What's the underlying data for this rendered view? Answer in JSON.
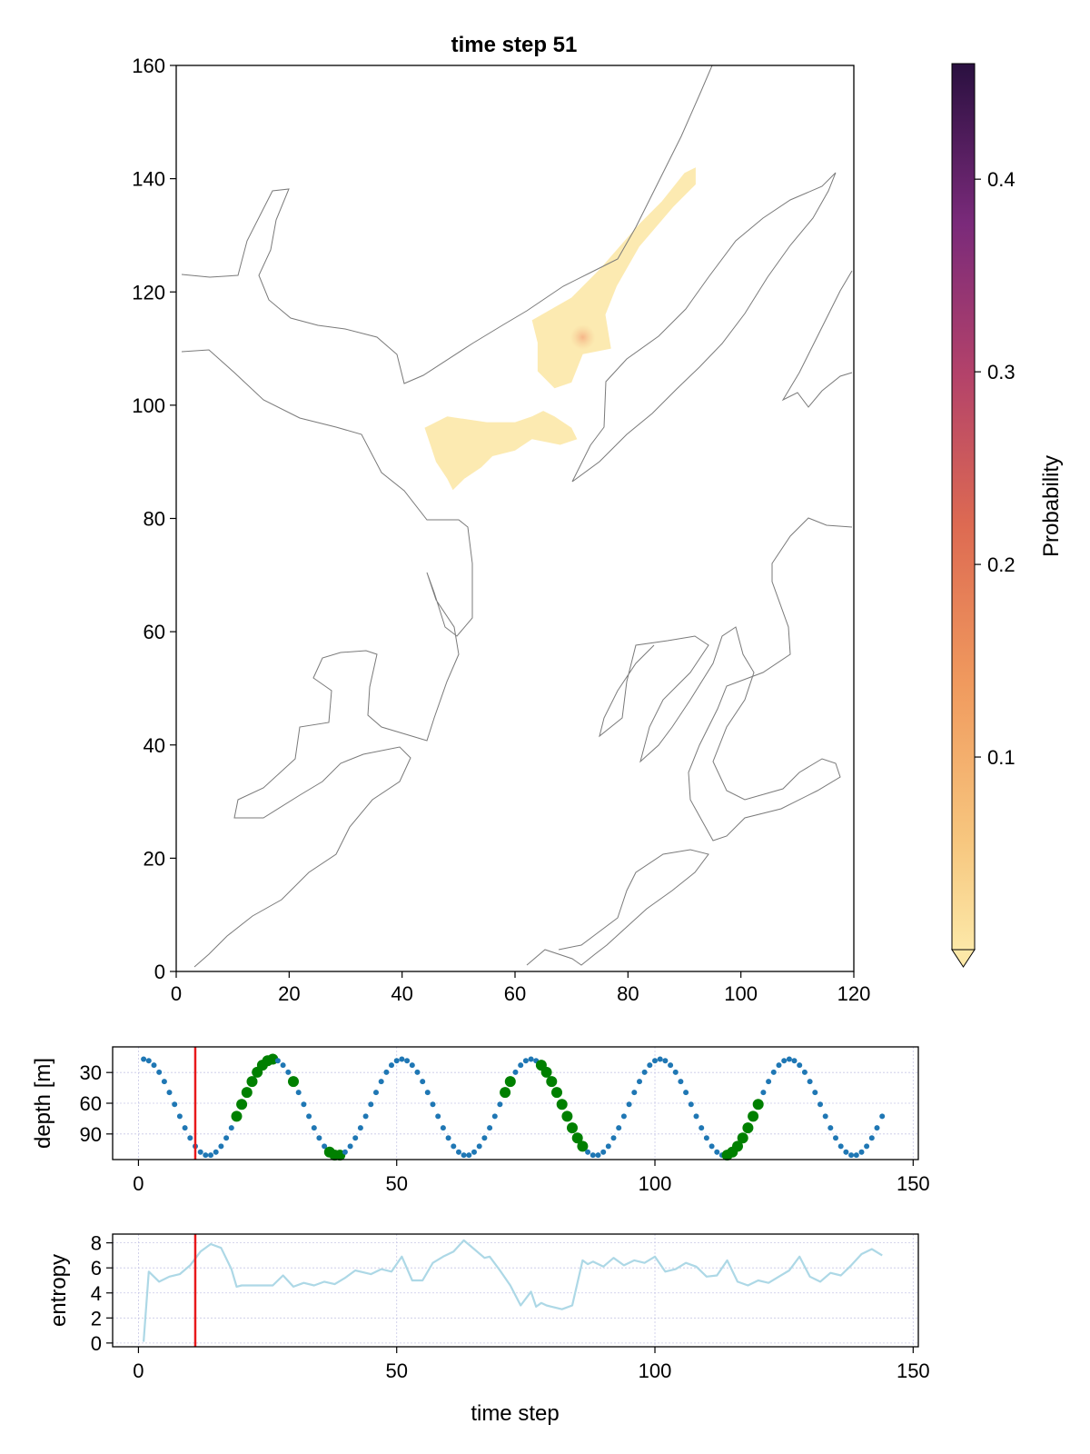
{
  "chart_data": [
    {
      "type": "heatmap",
      "title": "time step 51",
      "xlim": [
        0,
        120
      ],
      "ylim": [
        0,
        160
      ],
      "x_ticks": [
        "0",
        "20",
        "40",
        "60",
        "80",
        "100",
        "120"
      ],
      "y_ticks": [
        "0",
        "20",
        "40",
        "60",
        "80",
        "100",
        "120",
        "140",
        "160"
      ],
      "colorbar": {
        "label": "Probability",
        "ticks": [
          "0.1",
          "0.2",
          "0.3",
          "0.4"
        ],
        "range": [
          0,
          0.46
        ],
        "colormap": "inferno_reversed",
        "low_color": "#fce8a8",
        "high_color": "#2a1040"
      },
      "probability_regions": [
        {
          "name": "northern band",
          "probability": 0.02,
          "polygon": [
            [
              63,
              115
            ],
            [
              70,
              119
            ],
            [
              75,
              124
            ],
            [
              82,
              132
            ],
            [
              86,
              136
            ],
            [
              90,
              141
            ],
            [
              92,
              142
            ],
            [
              92,
              139
            ],
            [
              88,
              135
            ],
            [
              82,
              128
            ],
            [
              78,
              121
            ],
            [
              76,
              116
            ],
            [
              77,
              110
            ],
            [
              72,
              109
            ],
            [
              70,
              104
            ],
            [
              67,
              103
            ],
            [
              64,
              106
            ],
            [
              64,
              111
            ]
          ]
        },
        {
          "name": "southern blob",
          "probability": 0.02,
          "polygon": [
            [
              44,
              96
            ],
            [
              48,
              98
            ],
            [
              55,
              97
            ],
            [
              60,
              97
            ],
            [
              63,
              98
            ],
            [
              65,
              99
            ],
            [
              67,
              98
            ],
            [
              70,
              96
            ],
            [
              71,
              94
            ],
            [
              68,
              93
            ],
            [
              63,
              94
            ],
            [
              60,
              92
            ],
            [
              56,
              91
            ],
            [
              54,
              89
            ],
            [
              51,
              87
            ],
            [
              49,
              85
            ],
            [
              48,
              87
            ],
            [
              46,
              90
            ],
            [
              45,
              93
            ]
          ]
        },
        {
          "name": "hotspot",
          "probability": 0.06,
          "center": [
            72,
            112
          ]
        }
      ]
    },
    {
      "type": "scatter",
      "ylabel": "depth [m]",
      "xlim": [
        -5,
        151
      ],
      "ylim": [
        115,
        5
      ],
      "x_ticks": [
        "0",
        "50",
        "100",
        "150"
      ],
      "y_ticks": [
        "30",
        "60",
        "90"
      ],
      "current_time_step": 11,
      "series_color": "#1f77b4",
      "highlight_color": "#008000",
      "depth_model": {
        "period": 25,
        "mean": 64,
        "amplitude": 47,
        "offset": 1
      },
      "x_range": [
        1,
        144
      ],
      "highlighted_time_steps": [
        19,
        20,
        21,
        22,
        23,
        24,
        25,
        26,
        30,
        37,
        38,
        39,
        71,
        72,
        78,
        79,
        80,
        81,
        82,
        83,
        84,
        85,
        86,
        114,
        115,
        116,
        117,
        118,
        119,
        120
      ]
    },
    {
      "type": "line",
      "xlabel": "time step",
      "ylabel": "entropy",
      "xlim": [
        -5,
        151
      ],
      "ylim": [
        -0.3,
        8.7
      ],
      "x_ticks": [
        "0",
        "50",
        "100",
        "150"
      ],
      "y_ticks": [
        "0",
        "2",
        "4",
        "6",
        "8"
      ],
      "current_time_step": 11,
      "series_color": "#add8e6",
      "x": [
        1,
        2,
        4,
        6,
        8,
        10,
        12,
        14,
        16,
        18,
        19,
        20,
        22,
        26,
        28,
        30,
        32,
        34,
        36,
        38,
        40,
        42,
        45,
        47,
        49,
        51,
        53,
        55,
        57,
        59,
        61,
        63,
        65,
        67,
        68,
        70,
        72,
        74,
        76,
        77,
        78,
        79,
        80,
        82,
        84,
        86,
        87,
        88,
        90,
        92,
        94,
        96,
        98,
        100,
        102,
        104,
        106,
        108,
        110,
        112,
        114,
        116,
        118,
        120,
        122,
        124,
        126,
        128,
        130,
        132,
        134,
        136,
        138,
        140,
        142,
        144
      ],
      "values": [
        0.1,
        5.7,
        4.9,
        5.3,
        5.5,
        6.2,
        7.3,
        7.9,
        7.6,
        5.9,
        4.5,
        4.6,
        4.6,
        4.6,
        5.4,
        4.5,
        4.8,
        4.6,
        4.9,
        4.7,
        5.2,
        5.8,
        5.5,
        5.9,
        5.7,
        6.9,
        5.0,
        5.0,
        6.4,
        6.9,
        7.3,
        8.2,
        7.5,
        6.8,
        6.9,
        5.8,
        4.6,
        3.0,
        4.1,
        2.9,
        3.2,
        3.0,
        2.9,
        2.7,
        3.0,
        6.6,
        6.3,
        6.5,
        6.1,
        6.8,
        6.2,
        6.6,
        6.4,
        6.9,
        5.7,
        5.9,
        6.4,
        6.1,
        5.3,
        5.4,
        6.6,
        4.9,
        4.6,
        5.0,
        4.8,
        5.3,
        5.8,
        6.9,
        5.3,
        4.9,
        5.6,
        5.4,
        6.2,
        7.1,
        7.5,
        7.0
      ]
    }
  ]
}
